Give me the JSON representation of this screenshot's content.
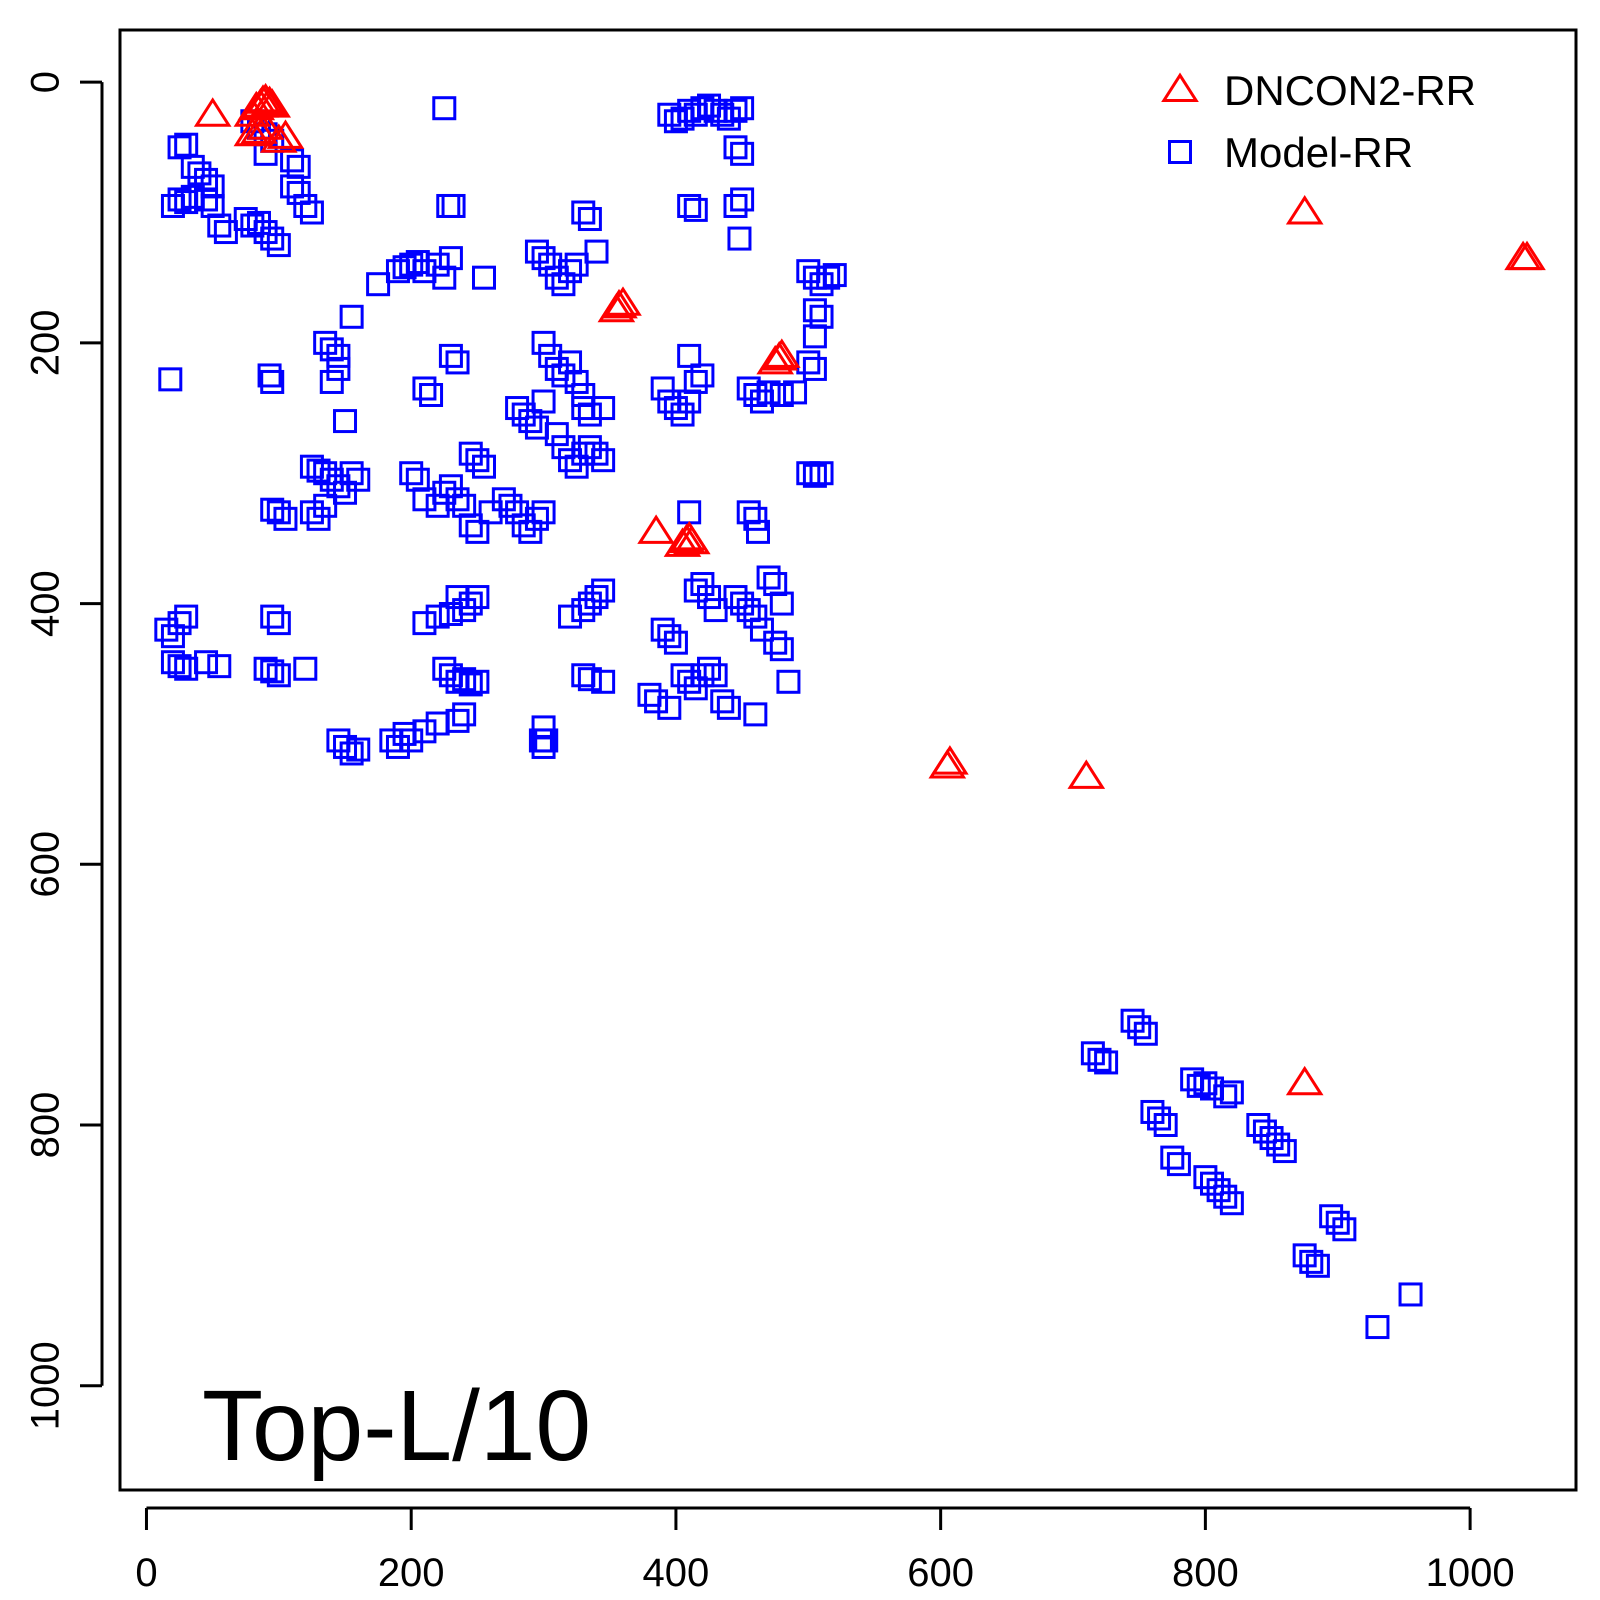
{
  "chart_data": {
    "type": "scatter",
    "title": "",
    "xlabel": "",
    "ylabel": "",
    "xlim": [
      -20,
      1080
    ],
    "ylim": [
      1080,
      -40
    ],
    "y_reversed": true,
    "x_ticks": [
      0,
      200,
      400,
      600,
      800,
      1000
    ],
    "y_ticks": [
      0,
      200,
      400,
      600,
      800,
      1000
    ],
    "legend_position": "top-right",
    "annotation": "Top-L/10",
    "series": [
      {
        "name": "DNCON2-RR",
        "marker": "triangle",
        "color": "#ff0000",
        "points": [
          [
            50,
            25
          ],
          [
            80,
            25
          ],
          [
            83,
            20
          ],
          [
            86,
            18
          ],
          [
            88,
            15
          ],
          [
            90,
            14
          ],
          [
            93,
            16
          ],
          [
            95,
            18
          ],
          [
            80,
            40
          ],
          [
            85,
            38
          ],
          [
            90,
            35
          ],
          [
            100,
            45
          ],
          [
            105,
            42
          ],
          [
            355,
            175
          ],
          [
            357,
            172
          ],
          [
            360,
            170
          ],
          [
            475,
            215
          ],
          [
            478,
            212
          ],
          [
            480,
            210
          ],
          [
            385,
            345
          ],
          [
            405,
            355
          ],
          [
            408,
            352
          ],
          [
            410,
            350
          ],
          [
            412,
            353
          ],
          [
            605,
            525
          ],
          [
            607,
            522
          ],
          [
            710,
            533
          ],
          [
            875,
            100
          ],
          [
            1040,
            135
          ],
          [
            1043,
            135
          ],
          [
            875,
            768
          ]
        ]
      },
      {
        "name": "Model-RR",
        "marker": "square",
        "color": "#0000ff",
        "points": [
          [
            25,
            50
          ],
          [
            30,
            48
          ],
          [
            35,
            65
          ],
          [
            40,
            70
          ],
          [
            45,
            75
          ],
          [
            50,
            80
          ],
          [
            20,
            95
          ],
          [
            25,
            90
          ],
          [
            30,
            92
          ],
          [
            35,
            88
          ],
          [
            45,
            90
          ],
          [
            50,
            95
          ],
          [
            55,
            110
          ],
          [
            60,
            115
          ],
          [
            75,
            105
          ],
          [
            80,
            110
          ],
          [
            85,
            108
          ],
          [
            90,
            115
          ],
          [
            95,
            120
          ],
          [
            100,
            125
          ],
          [
            80,
            30
          ],
          [
            85,
            35
          ],
          [
            90,
            40
          ],
          [
            95,
            45
          ],
          [
            90,
            55
          ],
          [
            110,
            60
          ],
          [
            115,
            65
          ],
          [
            110,
            80
          ],
          [
            115,
            85
          ],
          [
            120,
            95
          ],
          [
            125,
            100
          ],
          [
            225,
            20
          ],
          [
            228,
            95
          ],
          [
            232,
            95
          ],
          [
            18,
            228
          ],
          [
            93,
            225
          ],
          [
            95,
            230
          ],
          [
            175,
            155
          ],
          [
            190,
            145
          ],
          [
            195,
            142
          ],
          [
            200,
            140
          ],
          [
            205,
            138
          ],
          [
            210,
            145
          ],
          [
            220,
            140
          ],
          [
            225,
            150
          ],
          [
            230,
            135
          ],
          [
            255,
            150
          ],
          [
            135,
            200
          ],
          [
            140,
            205
          ],
          [
            145,
            210
          ],
          [
            140,
            230
          ],
          [
            145,
            220
          ],
          [
            150,
            260
          ],
          [
            155,
            180
          ],
          [
            230,
            210
          ],
          [
            235,
            215
          ],
          [
            210,
            235
          ],
          [
            215,
            240
          ],
          [
            295,
            130
          ],
          [
            300,
            135
          ],
          [
            305,
            140
          ],
          [
            310,
            150
          ],
          [
            315,
            155
          ],
          [
            320,
            145
          ],
          [
            325,
            140
          ],
          [
            330,
            100
          ],
          [
            335,
            105
          ],
          [
            340,
            130
          ],
          [
            300,
            200
          ],
          [
            305,
            210
          ],
          [
            310,
            220
          ],
          [
            315,
            225
          ],
          [
            320,
            215
          ],
          [
            325,
            230
          ],
          [
            330,
            240
          ],
          [
            280,
            250
          ],
          [
            285,
            255
          ],
          [
            290,
            260
          ],
          [
            295,
            265
          ],
          [
            300,
            245
          ],
          [
            310,
            270
          ],
          [
            315,
            280
          ],
          [
            330,
            250
          ],
          [
            335,
            255
          ],
          [
            345,
            250
          ],
          [
            320,
            290
          ],
          [
            325,
            295
          ],
          [
            330,
            285
          ],
          [
            335,
            280
          ],
          [
            340,
            285
          ],
          [
            345,
            290
          ],
          [
            125,
            295
          ],
          [
            130,
            298
          ],
          [
            135,
            300
          ],
          [
            140,
            305
          ],
          [
            145,
            310
          ],
          [
            150,
            315
          ],
          [
            155,
            300
          ],
          [
            160,
            305
          ],
          [
            100,
            330
          ],
          [
            105,
            335
          ],
          [
            95,
            328
          ],
          [
            125,
            330
          ],
          [
            130,
            335
          ],
          [
            135,
            325
          ],
          [
            200,
            300
          ],
          [
            205,
            305
          ],
          [
            210,
            320
          ],
          [
            220,
            325
          ],
          [
            225,
            315
          ],
          [
            230,
            310
          ],
          [
            235,
            320
          ],
          [
            240,
            325
          ],
          [
            245,
            285
          ],
          [
            250,
            290
          ],
          [
            255,
            295
          ],
          [
            245,
            340
          ],
          [
            250,
            345
          ],
          [
            260,
            330
          ],
          [
            270,
            320
          ],
          [
            275,
            325
          ],
          [
            280,
            330
          ],
          [
            285,
            340
          ],
          [
            290,
            345
          ],
          [
            295,
            335
          ],
          [
            300,
            330
          ],
          [
            395,
            25
          ],
          [
            400,
            30
          ],
          [
            405,
            28
          ],
          [
            410,
            22
          ],
          [
            415,
            25
          ],
          [
            420,
            20
          ],
          [
            425,
            18
          ],
          [
            430,
            22
          ],
          [
            435,
            25
          ],
          [
            440,
            28
          ],
          [
            445,
            22
          ],
          [
            450,
            20
          ],
          [
            445,
            50
          ],
          [
            450,
            55
          ],
          [
            410,
            95
          ],
          [
            415,
            98
          ],
          [
            445,
            95
          ],
          [
            450,
            90
          ],
          [
            448,
            120
          ],
          [
            500,
            145
          ],
          [
            505,
            150
          ],
          [
            510,
            155
          ],
          [
            515,
            150
          ],
          [
            520,
            148
          ],
          [
            505,
            175
          ],
          [
            510,
            180
          ],
          [
            505,
            195
          ],
          [
            500,
            215
          ],
          [
            505,
            220
          ],
          [
            390,
            235
          ],
          [
            395,
            245
          ],
          [
            400,
            250
          ],
          [
            405,
            255
          ],
          [
            410,
            245
          ],
          [
            415,
            230
          ],
          [
            420,
            225
          ],
          [
            410,
            210
          ],
          [
            455,
            235
          ],
          [
            460,
            240
          ],
          [
            465,
            245
          ],
          [
            470,
            238
          ],
          [
            480,
            240
          ],
          [
            490,
            238
          ],
          [
            500,
            300
          ],
          [
            505,
            302
          ],
          [
            510,
            300
          ],
          [
            410,
            330
          ],
          [
            455,
            330
          ],
          [
            460,
            335
          ],
          [
            462,
            345
          ],
          [
            15,
            420
          ],
          [
            20,
            425
          ],
          [
            25,
            415
          ],
          [
            30,
            410
          ],
          [
            20,
            445
          ],
          [
            25,
            448
          ],
          [
            30,
            450
          ],
          [
            45,
            445
          ],
          [
            55,
            448
          ],
          [
            95,
            410
          ],
          [
            100,
            415
          ],
          [
            90,
            450
          ],
          [
            95,
            452
          ],
          [
            100,
            455
          ],
          [
            120,
            450
          ],
          [
            210,
            415
          ],
          [
            220,
            410
          ],
          [
            230,
            408
          ],
          [
            235,
            395
          ],
          [
            240,
            405
          ],
          [
            245,
            400
          ],
          [
            250,
            395
          ],
          [
            225,
            450
          ],
          [
            230,
            455
          ],
          [
            235,
            460
          ],
          [
            240,
            458
          ],
          [
            245,
            462
          ],
          [
            250,
            460
          ],
          [
            320,
            410
          ],
          [
            330,
            405
          ],
          [
            335,
            400
          ],
          [
            340,
            395
          ],
          [
            345,
            390
          ],
          [
            330,
            455
          ],
          [
            335,
            458
          ],
          [
            345,
            460
          ],
          [
            380,
            470
          ],
          [
            385,
            475
          ],
          [
            390,
            420
          ],
          [
            395,
            425
          ],
          [
            400,
            430
          ],
          [
            405,
            455
          ],
          [
            410,
            460
          ],
          [
            415,
            465
          ],
          [
            420,
            455
          ],
          [
            425,
            450
          ],
          [
            430,
            455
          ],
          [
            395,
            480
          ],
          [
            415,
            390
          ],
          [
            420,
            385
          ],
          [
            425,
            395
          ],
          [
            430,
            405
          ],
          [
            435,
            475
          ],
          [
            440,
            480
          ],
          [
            445,
            395
          ],
          [
            450,
            400
          ],
          [
            455,
            405
          ],
          [
            460,
            410
          ],
          [
            465,
            420
          ],
          [
            470,
            380
          ],
          [
            475,
            385
          ],
          [
            480,
            400
          ],
          [
            475,
            430
          ],
          [
            480,
            435
          ],
          [
            485,
            460
          ],
          [
            460,
            485
          ],
          [
            145,
            505
          ],
          [
            150,
            510
          ],
          [
            155,
            515
          ],
          [
            160,
            512
          ],
          [
            185,
            505
          ],
          [
            190,
            510
          ],
          [
            195,
            500
          ],
          [
            200,
            505
          ],
          [
            210,
            498
          ],
          [
            220,
            492
          ],
          [
            235,
            490
          ],
          [
            240,
            485
          ],
          [
            300,
            495
          ],
          [
            302,
            505
          ],
          [
            300,
            510
          ],
          [
            298,
            505
          ],
          [
            745,
            720
          ],
          [
            750,
            725
          ],
          [
            755,
            730
          ],
          [
            715,
            745
          ],
          [
            720,
            750
          ],
          [
            725,
            752
          ],
          [
            760,
            790
          ],
          [
            765,
            795
          ],
          [
            770,
            800
          ],
          [
            775,
            825
          ],
          [
            780,
            830
          ],
          [
            790,
            765
          ],
          [
            795,
            770
          ],
          [
            800,
            768
          ],
          [
            805,
            772
          ],
          [
            815,
            778
          ],
          [
            820,
            775
          ],
          [
            800,
            840
          ],
          [
            805,
            845
          ],
          [
            810,
            850
          ],
          [
            815,
            855
          ],
          [
            820,
            860
          ],
          [
            840,
            800
          ],
          [
            845,
            805
          ],
          [
            850,
            810
          ],
          [
            855,
            815
          ],
          [
            860,
            820
          ],
          [
            895,
            870
          ],
          [
            900,
            875
          ],
          [
            905,
            880
          ],
          [
            875,
            900
          ],
          [
            880,
            905
          ],
          [
            885,
            908
          ],
          [
            955,
            930
          ],
          [
            930,
            955
          ]
        ]
      }
    ]
  }
}
